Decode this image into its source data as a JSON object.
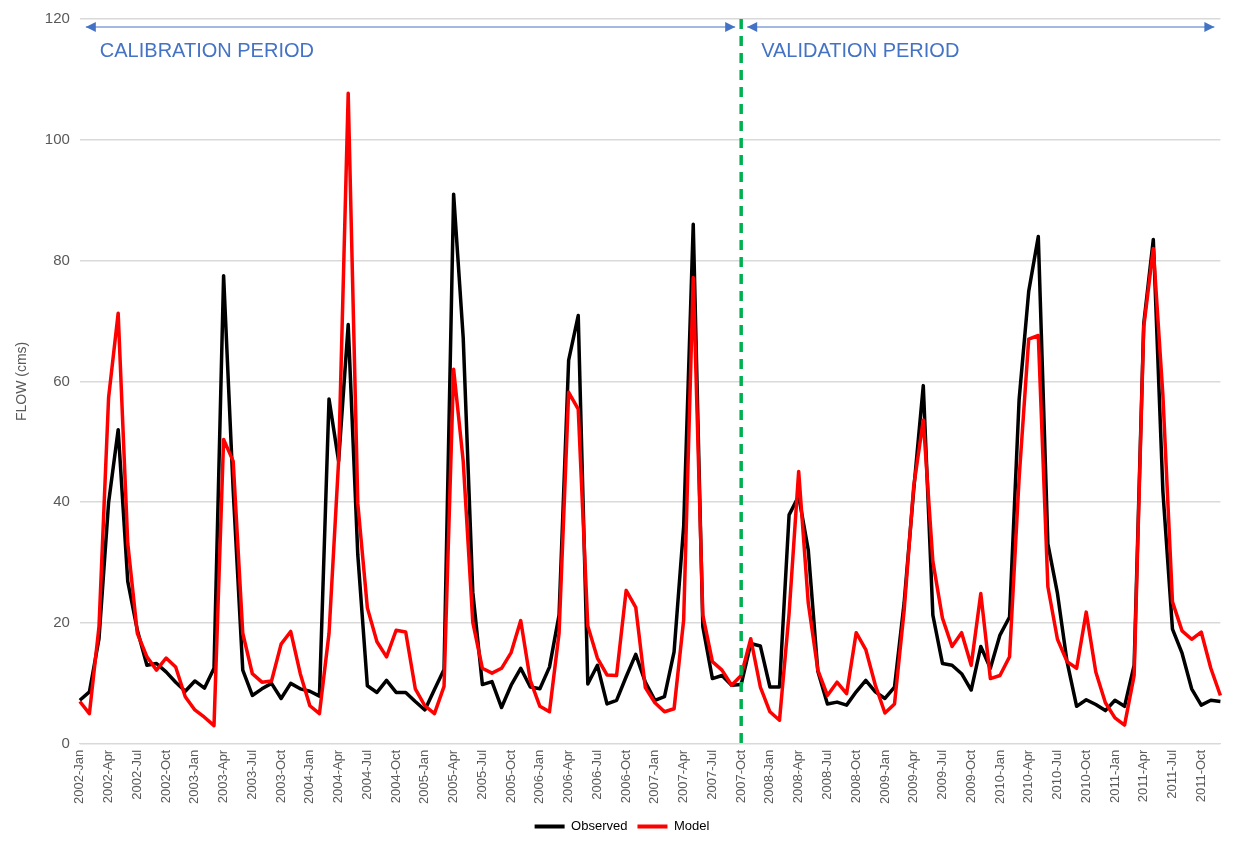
{
  "chart_data": {
    "type": "line",
    "ylabel": "FLOW (cms)",
    "categories": [
      "2002-Jan",
      null,
      null,
      "2002-Apr",
      null,
      null,
      "2002-Jul",
      null,
      null,
      "2002-Oct",
      null,
      null,
      "2003-Jan",
      null,
      null,
      "2003-Apr",
      null,
      null,
      "2003-Jul",
      null,
      null,
      "2003-Oct",
      null,
      null,
      "2004-Jan",
      null,
      null,
      "2004-Apr",
      null,
      null,
      "2004-Jul",
      null,
      null,
      "2004-Oct",
      null,
      null,
      "2005-Jan",
      null,
      null,
      "2005-Apr",
      null,
      null,
      "2005-Jul",
      null,
      null,
      "2005-Oct",
      null,
      null,
      "2006-Jan",
      null,
      null,
      "2006-Apr",
      null,
      null,
      "2006-Jul",
      null,
      null,
      "2006-Oct",
      null,
      null,
      "2007-Jan",
      null,
      null,
      "2007-Apr",
      null,
      null,
      "2007-Jul",
      null,
      null,
      "2007-Oct",
      null,
      null,
      "2008-Jan",
      null,
      null,
      "2008-Apr",
      null,
      null,
      "2008-Jul",
      null,
      null,
      "2008-Oct",
      null,
      null,
      "2009-Jan",
      null,
      null,
      "2009-Apr",
      null,
      null,
      "2009-Jul",
      null,
      null,
      "2009-Oct",
      null,
      null,
      "2010-Jan",
      null,
      null,
      "2010-Apr",
      null,
      null,
      "2010-Jul",
      null,
      null,
      "2010-Oct",
      null,
      null,
      "2011-Jan",
      null,
      null,
      "2011-Apr",
      null,
      null,
      "2011-Jul",
      null,
      null,
      "2011-Oct",
      null,
      null
    ],
    "series": [
      {
        "name": "Observed",
        "color": "#000000",
        "values": [
          7.2,
          8.6,
          17.4,
          39.9,
          52,
          26.9,
          18.8,
          13,
          13.3,
          11.9,
          10.2,
          8.7,
          10.4,
          9.2,
          12.5,
          77.5,
          42,
          12.2,
          8,
          9.1,
          10,
          7.5,
          10,
          9.1,
          8.7,
          7.9,
          57.1,
          46.8,
          69.4,
          31.3,
          9.6,
          8.5,
          10.5,
          8.5,
          8.5,
          7,
          5.6,
          9,
          12.3,
          91,
          67.2,
          25.1,
          9.8,
          10.3,
          6,
          9.7,
          12.5,
          9.4,
          9.1,
          12.7,
          21.3,
          63.5,
          70.9,
          9.9,
          13,
          6.6,
          7.2,
          11.1,
          14.8,
          10.2,
          7.2,
          7.8,
          15.2,
          36,
          86,
          19.4,
          10.8,
          11.3,
          9.7,
          9.8,
          16.6,
          16.2,
          9.4,
          9.4,
          37.9,
          41,
          32.1,
          12,
          6.6,
          6.9,
          6.4,
          8.6,
          10.5,
          8.6,
          7.5,
          9.4,
          23.3,
          42,
          59.3,
          21.3,
          13.3,
          13,
          11.6,
          8.9,
          16.1,
          12.5,
          18,
          21,
          57,
          74.9,
          84,
          33.1,
          24.9,
          13.6,
          6.2,
          7.3,
          6.5,
          5.5,
          7.2,
          6.2,
          13,
          69.5,
          83.5,
          41.8,
          19,
          15,
          9.1,
          6.4,
          7.2,
          7
        ]
      },
      {
        "name": "Model",
        "color": "#ff0000",
        "values": [
          7,
          5,
          19.4,
          57.3,
          71.3,
          33.2,
          18.3,
          14.4,
          12.2,
          14.2,
          12.7,
          7.8,
          5.6,
          4.4,
          3,
          50.4,
          46.8,
          18.3,
          11.6,
          10.2,
          10.4,
          16.5,
          18.6,
          11.6,
          6.3,
          5,
          18.3,
          46.8,
          107.7,
          39.8,
          22.5,
          16.9,
          14.4,
          18.8,
          18.5,
          9.1,
          6.3,
          5,
          9.5,
          62,
          46.8,
          20.1,
          12.5,
          11.7,
          12.5,
          15.1,
          20.4,
          10.5,
          6.2,
          5.3,
          18.3,
          58.2,
          55.4,
          19.5,
          14.2,
          11.4,
          11.3,
          25.4,
          22.6,
          9.3,
          6.8,
          5.3,
          5.8,
          20.5,
          77.2,
          21.3,
          13.6,
          12.2,
          9.7,
          11.3,
          17.4,
          9.4,
          5.3,
          3.9,
          21.6,
          45.1,
          23.3,
          12.2,
          8,
          10.2,
          8.3,
          18.4,
          15.6,
          9.7,
          5.1,
          6.6,
          22,
          42.6,
          53.6,
          30.2,
          20.8,
          16.1,
          18.4,
          13,
          24.9,
          10.8,
          11.3,
          14.4,
          44,
          67,
          67.6,
          26,
          17.3,
          13.6,
          12.5,
          21.8,
          11.9,
          6.8,
          4.3,
          3.1,
          11.3,
          69,
          82,
          57.7,
          23.5,
          18.7,
          17.3,
          18.5,
          12.5,
          8
        ]
      }
    ],
    "ylim": [
      0,
      120
    ],
    "yticks": [
      0,
      20,
      40,
      60,
      80,
      100,
      120
    ],
    "grid": "y",
    "legend": "bottom",
    "marker": "none",
    "line_style": "solid",
    "ref_lines": [
      {
        "axis": "x",
        "value": "2007-Oct",
        "color": "#00b050",
        "line_style": "dashed"
      }
    ],
    "annotations": [
      "CALIBRATION PERIOD",
      "VALIDATION PERIOD"
    ]
  }
}
